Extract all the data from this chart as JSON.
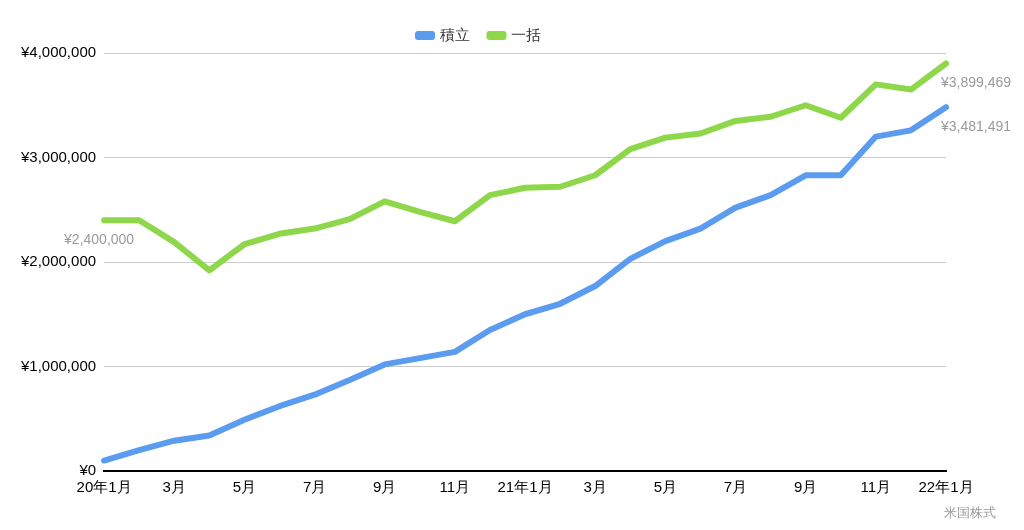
{
  "chart_data": {
    "type": "line",
    "categories": [
      "20年1月",
      null,
      "3月",
      null,
      "5月",
      null,
      "7月",
      null,
      "9月",
      null,
      "11月",
      null,
      "21年1月",
      null,
      "3月",
      null,
      "5月",
      null,
      "7月",
      null,
      "9月",
      null,
      "11月",
      null,
      "22年1月"
    ],
    "series": [
      {
        "name": "積立",
        "color": "#5b9cf0",
        "values": [
          100000,
          200000,
          290000,
          340000,
          490000,
          620000,
          730000,
          870000,
          1020000,
          1080000,
          1140000,
          1350000,
          1500000,
          1600000,
          1770000,
          2030000,
          2200000,
          2320000,
          2520000,
          2640000,
          2830000,
          2830000,
          3200000,
          3260000,
          3481491
        ],
        "value_labels": [
          null,
          null,
          null,
          null,
          null,
          null,
          null,
          null,
          null,
          null,
          null,
          null,
          null,
          null,
          null,
          null,
          null,
          null,
          null,
          null,
          null,
          null,
          null,
          null,
          "¥3,481,491"
        ]
      },
      {
        "name": "一括",
        "color": "#8ed64a",
        "values": [
          2400000,
          2400000,
          2190000,
          1920000,
          2170000,
          2270000,
          2320000,
          2410000,
          2580000,
          2480000,
          2390000,
          2640000,
          2710000,
          2720000,
          2830000,
          3080000,
          3190000,
          3230000,
          3350000,
          3390000,
          3500000,
          3380000,
          3700000,
          3650000,
          3899469
        ],
        "value_labels": [
          "¥2,400,000",
          null,
          null,
          null,
          null,
          null,
          null,
          null,
          null,
          null,
          null,
          null,
          null,
          null,
          null,
          null,
          null,
          null,
          null,
          null,
          null,
          null,
          null,
          null,
          "¥3,899,469"
        ]
      }
    ],
    "ylim": [
      0,
      4000000
    ],
    "yticks": [
      {
        "value": 0,
        "label": "¥0"
      },
      {
        "value": 1000000,
        "label": "¥1,000,000"
      },
      {
        "value": 2000000,
        "label": "¥2,000,000"
      },
      {
        "value": 3000000,
        "label": "¥3,000,000"
      },
      {
        "value": 4000000,
        "label": "¥4,000,000"
      }
    ],
    "grid": "y",
    "legend": "top",
    "marker": "none",
    "line_style": "solid",
    "annotations": [
      "米国株式"
    ]
  }
}
